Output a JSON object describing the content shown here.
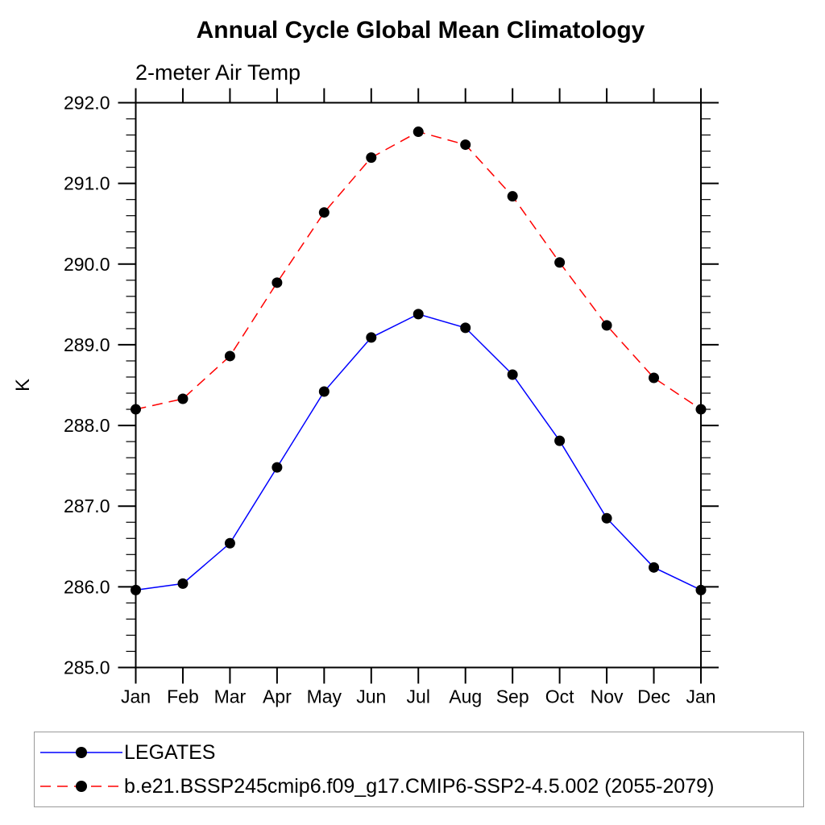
{
  "page": {
    "background_color": "#ffffff",
    "text_color": "#000000"
  },
  "chart_data": {
    "type": "line",
    "title": "Annual Cycle Global Mean Climatology",
    "subtitle": "2-meter Air Temp",
    "ylabel": "K",
    "xlabel": "",
    "x_categories": [
      "Jan",
      "Feb",
      "Mar",
      "Apr",
      "May",
      "Jun",
      "Jul",
      "Aug",
      "Sep",
      "Oct",
      "Nov",
      "Dec",
      "Jan"
    ],
    "ylim": [
      285.0,
      292.0
    ],
    "y_major_step": 1.0,
    "y_minor_step": 0.2,
    "y_tick_labels": [
      "285.0",
      "286.0",
      "287.0",
      "288.0",
      "289.0",
      "290.0",
      "291.0",
      "292.0"
    ],
    "grid": false,
    "legend_position": "bottom",
    "axis_color": "#000000",
    "legend_border_color": "#9a9a9a",
    "marker": "filled-circle",
    "marker_color": "#000000",
    "series": [
      {
        "name": "LEGATES",
        "color": "#0000ff",
        "line_style": "solid",
        "values": [
          285.96,
          286.04,
          286.54,
          287.48,
          288.42,
          289.09,
          289.38,
          289.21,
          288.63,
          287.81,
          286.85,
          286.24,
          285.96
        ]
      },
      {
        "name": "b.e21.BSSP245cmip6.f09_g17.CMIP6-SSP2-4.5.002 (2055-2079)",
        "color": "#ff0000",
        "line_style": "dashed",
        "values": [
          288.2,
          288.33,
          288.86,
          289.77,
          290.64,
          291.32,
          291.64,
          291.48,
          290.84,
          290.02,
          289.24,
          288.59,
          288.2
        ]
      }
    ]
  }
}
